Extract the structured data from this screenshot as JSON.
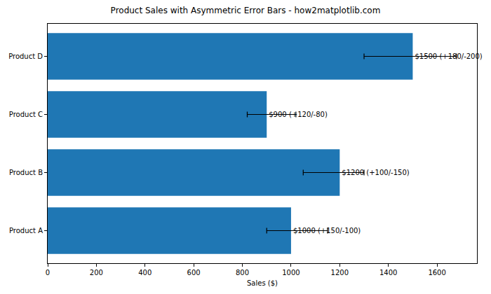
{
  "chart_data": {
    "type": "bar",
    "orientation": "horizontal",
    "title": "Product Sales with Asymmetric Error Bars - how2matplotlib.com",
    "x_label": "Sales ($)",
    "categories": [
      "Product A",
      "Product B",
      "Product C",
      "Product D"
    ],
    "values": [
      1000,
      1200,
      900,
      1500
    ],
    "error_plus": [
      150,
      100,
      120,
      180
    ],
    "error_minus": [
      100,
      150,
      80,
      200
    ],
    "value_labels": [
      "$1000 (+150/-100)",
      "$1200 (+100/-150)",
      "$900 (+120/-80)",
      "$1500 (+180/-200)"
    ],
    "data_labels": true,
    "color": "#1f77b4",
    "xlim": [
      0,
      1764
    ],
    "xticks": [
      0,
      200,
      400,
      600,
      800,
      1000,
      1200,
      1400,
      1600
    ],
    "grid": false
  }
}
